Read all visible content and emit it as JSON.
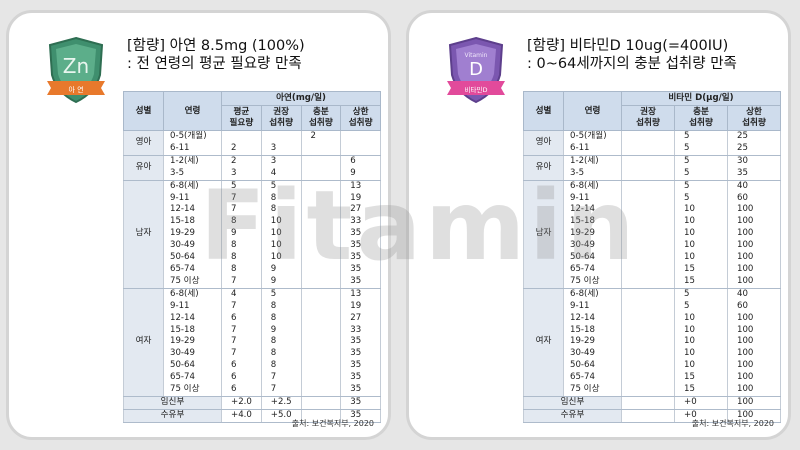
{
  "watermark": "Fitamin",
  "zinc": {
    "badge": {
      "symbol": "Zn",
      "ribbon": "아 연",
      "shield_color": "#3f8f6e",
      "ribbon_color": "#e8792c"
    },
    "title_line1": "[함량] 아연 8.5mg (100%)",
    "title_line2": ": 전 연령의 평균 필요량 만족",
    "headers": {
      "sex": "성별",
      "age": "연령",
      "group": "아연(mg/일)",
      "c1": "평균\n필요량",
      "c2": "권장\n섭취량",
      "c3": "충분\n섭취량",
      "c4": "상한\n섭취량"
    },
    "groups": [
      {
        "label": "영아",
        "rows": [
          [
            "0-5(개월)",
            "",
            "",
            "2",
            ""
          ],
          [
            "6-11",
            "2",
            "3",
            "",
            ""
          ]
        ]
      },
      {
        "label": "유아",
        "rows": [
          [
            "1-2(세)",
            "2",
            "3",
            "",
            "6"
          ],
          [
            "3-5",
            "3",
            "4",
            "",
            "9"
          ]
        ]
      },
      {
        "label": "남자",
        "rows": [
          [
            "6-8(세)",
            "5",
            "5",
            "",
            "13"
          ],
          [
            "9-11",
            "7",
            "8",
            "",
            "19"
          ],
          [
            "12-14",
            "7",
            "8",
            "",
            "27"
          ],
          [
            "15-18",
            "8",
            "10",
            "",
            "33"
          ],
          [
            "19-29",
            "9",
            "10",
            "",
            "35"
          ],
          [
            "30-49",
            "8",
            "10",
            "",
            "35"
          ],
          [
            "50-64",
            "8",
            "10",
            "",
            "35"
          ],
          [
            "65-74",
            "8",
            "9",
            "",
            "35"
          ],
          [
            "75 이상",
            "7",
            "9",
            "",
            "35"
          ]
        ]
      },
      {
        "label": "여자",
        "rows": [
          [
            "6-8(세)",
            "4",
            "5",
            "",
            "13"
          ],
          [
            "9-11",
            "7",
            "8",
            "",
            "19"
          ],
          [
            "12-14",
            "6",
            "8",
            "",
            "27"
          ],
          [
            "15-18",
            "7",
            "9",
            "",
            "33"
          ],
          [
            "19-29",
            "7",
            "8",
            "",
            "35"
          ],
          [
            "30-49",
            "7",
            "8",
            "",
            "35"
          ],
          [
            "50-64",
            "6",
            "8",
            "",
            "35"
          ],
          [
            "65-74",
            "6",
            "7",
            "",
            "35"
          ],
          [
            "75 이상",
            "6",
            "7",
            "",
            "35"
          ]
        ]
      }
    ],
    "tail": [
      [
        "임신부",
        "+2.0",
        "+2.5",
        "",
        "35"
      ],
      [
        "수유부",
        "+4.0",
        "+5.0",
        "",
        "35"
      ]
    ],
    "source": "출처: 보건복지부, 2020"
  },
  "vitd": {
    "badge": {
      "symbol": "D",
      "small": "Vitamin",
      "ribbon": "비타민D",
      "shield_color": "#7b57b0",
      "ribbon_color": "#e24a9b"
    },
    "title_line1": "[함량] 비타민D 10ug(=400IU)",
    "title_line2": ": 0~64세까지의 충분 섭취량 만족",
    "headers": {
      "sex": "성별",
      "age": "연령",
      "group": "비타민 D(μg/일)",
      "c1": "권장\n섭취량",
      "c2": "충분\n섭취량",
      "c3": "상한\n섭취량"
    },
    "groups": [
      {
        "label": "영아",
        "rows": [
          [
            "0-5(개월)",
            "",
            "5",
            "25"
          ],
          [
            "6-11",
            "",
            "5",
            "25"
          ]
        ]
      },
      {
        "label": "유아",
        "rows": [
          [
            "1-2(세)",
            "",
            "5",
            "30"
          ],
          [
            "3-5",
            "",
            "5",
            "35"
          ]
        ]
      },
      {
        "label": "남자",
        "rows": [
          [
            "6-8(세)",
            "",
            "5",
            "40"
          ],
          [
            "9-11",
            "",
            "5",
            "60"
          ],
          [
            "12-14",
            "",
            "10",
            "100"
          ],
          [
            "15-18",
            "",
            "10",
            "100"
          ],
          [
            "19-29",
            "",
            "10",
            "100"
          ],
          [
            "30-49",
            "",
            "10",
            "100"
          ],
          [
            "50-64",
            "",
            "10",
            "100"
          ],
          [
            "65-74",
            "",
            "15",
            "100"
          ],
          [
            "75 이상",
            "",
            "15",
            "100"
          ]
        ]
      },
      {
        "label": "여자",
        "rows": [
          [
            "6-8(세)",
            "",
            "5",
            "40"
          ],
          [
            "9-11",
            "",
            "5",
            "60"
          ],
          [
            "12-14",
            "",
            "10",
            "100"
          ],
          [
            "15-18",
            "",
            "10",
            "100"
          ],
          [
            "19-29",
            "",
            "10",
            "100"
          ],
          [
            "30-49",
            "",
            "10",
            "100"
          ],
          [
            "50-64",
            "",
            "10",
            "100"
          ],
          [
            "65-74",
            "",
            "15",
            "100"
          ],
          [
            "75 이상",
            "",
            "15",
            "100"
          ]
        ]
      }
    ],
    "tail": [
      [
        "임신부",
        "",
        "+0",
        "100"
      ],
      [
        "수유부",
        "",
        "+0",
        "100"
      ]
    ],
    "source": "출처: 보건복지부, 2020"
  }
}
